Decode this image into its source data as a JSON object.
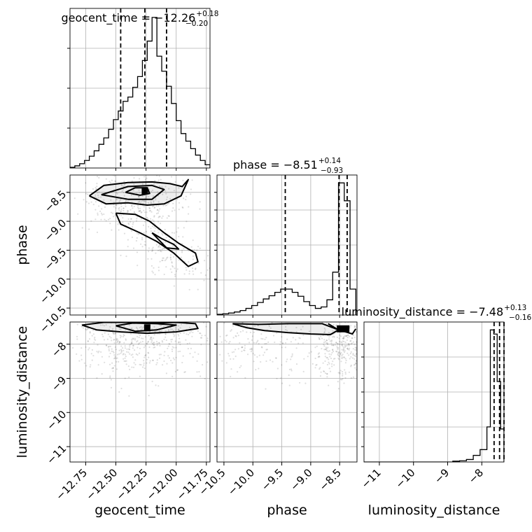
{
  "chart_data": {
    "type": "corner",
    "parameters": [
      "geocent_time",
      "phase",
      "luminosity_distance"
    ],
    "grid": true,
    "titles": [
      {
        "main": "geocent_time = −12.26",
        "sup": "+0.18",
        "sub": "−0.20"
      },
      {
        "main": "phase = −8.51",
        "sup": "+0.14",
        "sub": "−0.93"
      },
      {
        "main": "luminosity_distance = −7.48",
        "sup": "+0.13",
        "sub": "−0.16"
      }
    ],
    "axis_labels": {
      "x": [
        "geocent_time",
        "phase",
        "luminosity_distance"
      ],
      "y": [
        "phase",
        "luminosity_distance"
      ]
    },
    "ranges": {
      "geocent_time": [
        -12.88,
        -11.72
      ],
      "phase": [
        -10.62,
        -8.2
      ],
      "luminosity_distance": [
        -11.45,
        -7.35
      ]
    },
    "ticks": {
      "geocent_time": {
        "values": [
          -12.75,
          -12.5,
          -12.25,
          -12.0,
          -11.75
        ],
        "labels": [
          "−12.75",
          "−12.50",
          "−12.25",
          "−12.00",
          "−11.75"
        ]
      },
      "phase": {
        "values": [
          -10.5,
          -10.0,
          -9.5,
          -9.0,
          -8.5
        ],
        "labels": [
          "−10.5",
          "−10.0",
          "−9.5",
          "−9.0",
          "−8.5"
        ]
      },
      "luminosity_distance": {
        "values": [
          -11,
          -10,
          -9,
          -8
        ],
        "labels": [
          "−11",
          "−10",
          "−9",
          "−8"
        ]
      }
    },
    "quantiles": {
      "geocent_time": [
        -12.46,
        -12.26,
        -12.08
      ],
      "phase": [
        -9.44,
        -8.51,
        -8.37
      ],
      "luminosity_distance": [
        -7.64,
        -7.48,
        -7.35
      ]
    },
    "histograms": {
      "geocent_time": {
        "edges": [
          -12.88,
          -12.84,
          -12.8,
          -12.76,
          -12.72,
          -12.68,
          -12.64,
          -12.6,
          -12.56,
          -12.52,
          -12.48,
          -12.44,
          -12.4,
          -12.36,
          -12.32,
          -12.28,
          -12.24,
          -12.2,
          -12.16,
          -12.12,
          -12.08,
          -12.04,
          -12.0,
          -11.96,
          -11.92,
          -11.88,
          -11.84,
          -11.8,
          -11.76,
          -11.72
        ],
        "counts": [
          0.3,
          1.0,
          2.0,
          3.5,
          5.5,
          8.0,
          11.0,
          14.0,
          18.0,
          22.5,
          26.5,
          31.0,
          33.0,
          37.5,
          42.5,
          50.0,
          59.0,
          70.0,
          52.0,
          45.0,
          38.0,
          30.0,
          22.0,
          16.0,
          12.5,
          9.0,
          6.0,
          3.5,
          1.5
        ]
      },
      "phase": {
        "edges": [
          -10.62,
          -10.52,
          -10.42,
          -10.32,
          -10.22,
          -10.12,
          -10.02,
          -9.92,
          -9.82,
          -9.72,
          -9.62,
          -9.52,
          -9.42,
          -9.32,
          -9.22,
          -9.12,
          -9.02,
          -8.92,
          -8.82,
          -8.72,
          -8.62,
          -8.52,
          -8.42,
          -8.32,
          -8.22
        ],
        "counts": [
          0.4,
          0.7,
          1.1,
          1.7,
          2.5,
          3.7,
          5.3,
          7.0,
          9.0,
          10.8,
          12.7,
          14.5,
          14.5,
          12.7,
          10.5,
          7.5,
          5.3,
          3.7,
          4.5,
          8.5,
          24.0,
          74.0,
          64.0,
          14.5
        ]
      },
      "luminosity_distance": {
        "edges": [
          -11.45,
          -11.25,
          -11.05,
          -10.85,
          -10.65,
          -10.45,
          -10.25,
          -10.05,
          -9.85,
          -9.65,
          -9.45,
          -9.25,
          -9.05,
          -8.85,
          -8.65,
          -8.45,
          -8.25,
          -8.05,
          -7.85,
          -7.75,
          -7.65,
          -7.55,
          -7.45,
          -7.35
        ],
        "counts": [
          0,
          0,
          0,
          0,
          0,
          0,
          0,
          0,
          0,
          0,
          0,
          0,
          0,
          0.2,
          0.3,
          0.6,
          1.6,
          3.0,
          8.5,
          32.0,
          31.0,
          19.5,
          8.0
        ]
      }
    },
    "contours": {
      "phase_vs_geocent_time": [
        [
          [
            -12.72,
            -8.56
          ],
          [
            -12.6,
            -8.38
          ],
          [
            -12.4,
            -8.33
          ],
          [
            -12.2,
            -8.32
          ],
          [
            -12.05,
            -8.35
          ],
          [
            -11.95,
            -8.4
          ],
          [
            -11.9,
            -8.28
          ],
          [
            -11.96,
            -8.56
          ],
          [
            -12.1,
            -8.7
          ],
          [
            -12.24,
            -8.72
          ],
          [
            -12.4,
            -8.68
          ],
          [
            -12.58,
            -8.7
          ],
          [
            -12.72,
            -8.56
          ]
        ],
        [
          [
            -12.62,
            -8.54
          ],
          [
            -12.4,
            -8.4
          ],
          [
            -12.2,
            -8.38
          ],
          [
            -12.1,
            -8.45
          ],
          [
            -12.2,
            -8.62
          ],
          [
            -12.4,
            -8.62
          ],
          [
            -12.62,
            -8.54
          ]
        ],
        [
          [
            -12.42,
            -8.5
          ],
          [
            -12.34,
            -8.42
          ],
          [
            -12.24,
            -8.42
          ],
          [
            -12.22,
            -8.52
          ],
          [
            -12.3,
            -8.55
          ],
          [
            -12.42,
            -8.5
          ]
        ],
        [
          [
            -12.5,
            -8.86
          ],
          [
            -12.46,
            -9.05
          ],
          [
            -12.3,
            -9.2
          ],
          [
            -12.16,
            -9.35
          ],
          [
            -12.02,
            -9.55
          ],
          [
            -11.9,
            -9.78
          ],
          [
            -11.82,
            -9.7
          ],
          [
            -11.84,
            -9.55
          ],
          [
            -11.98,
            -9.38
          ],
          [
            -12.1,
            -9.2
          ],
          [
            -12.22,
            -9.0
          ],
          [
            -12.34,
            -8.88
          ],
          [
            -12.5,
            -8.86
          ]
        ],
        [
          [
            -12.2,
            -9.2
          ],
          [
            -12.12,
            -9.3
          ],
          [
            -12.02,
            -9.4
          ],
          [
            -11.98,
            -9.48
          ],
          [
            -12.08,
            -9.46
          ],
          [
            -12.2,
            -9.2
          ]
        ]
      ],
      "luminosity_distance_vs_geocent_time": [
        [
          [
            -12.78,
            -7.44
          ],
          [
            -12.6,
            -7.36
          ],
          [
            -12.4,
            -7.36
          ],
          [
            -12.2,
            -7.38
          ],
          [
            -12.0,
            -7.36
          ],
          [
            -11.84,
            -7.4
          ],
          [
            -11.82,
            -7.54
          ],
          [
            -12.0,
            -7.64
          ],
          [
            -12.24,
            -7.68
          ],
          [
            -12.46,
            -7.64
          ],
          [
            -12.66,
            -7.58
          ],
          [
            -12.78,
            -7.44
          ]
        ],
        [
          [
            -12.5,
            -7.46
          ],
          [
            -12.36,
            -7.38
          ],
          [
            -12.16,
            -7.4
          ],
          [
            -12.0,
            -7.44
          ],
          [
            -12.16,
            -7.58
          ],
          [
            -12.34,
            -7.62
          ],
          [
            -12.5,
            -7.46
          ]
        ]
      ],
      "luminosity_distance_vs_phase": [
        [
          [
            -10.35,
            -7.4
          ],
          [
            -9.9,
            -7.42
          ],
          [
            -9.4,
            -7.4
          ],
          [
            -8.8,
            -7.4
          ],
          [
            -8.52,
            -7.58
          ],
          [
            -8.66,
            -7.72
          ],
          [
            -9.0,
            -7.7
          ],
          [
            -9.4,
            -7.66
          ],
          [
            -9.8,
            -7.6
          ],
          [
            -10.1,
            -7.52
          ],
          [
            -10.35,
            -7.4
          ]
        ],
        [
          [
            -8.7,
            -7.4
          ],
          [
            -8.55,
            -7.55
          ],
          [
            -8.4,
            -7.64
          ],
          [
            -8.28,
            -7.7
          ],
          [
            -8.22,
            -7.55
          ]
        ]
      ]
    },
    "density_peaks": [
      {
        "panel": "phase_vs_geocent_time",
        "x": -12.26,
        "y": -8.47
      },
      {
        "panel": "luminosity_distance_vs_geocent_time",
        "x": -12.24,
        "y": -7.52
      },
      {
        "panel": "luminosity_distance_vs_phase",
        "x": -8.44,
        "y": -7.55
      }
    ]
  }
}
